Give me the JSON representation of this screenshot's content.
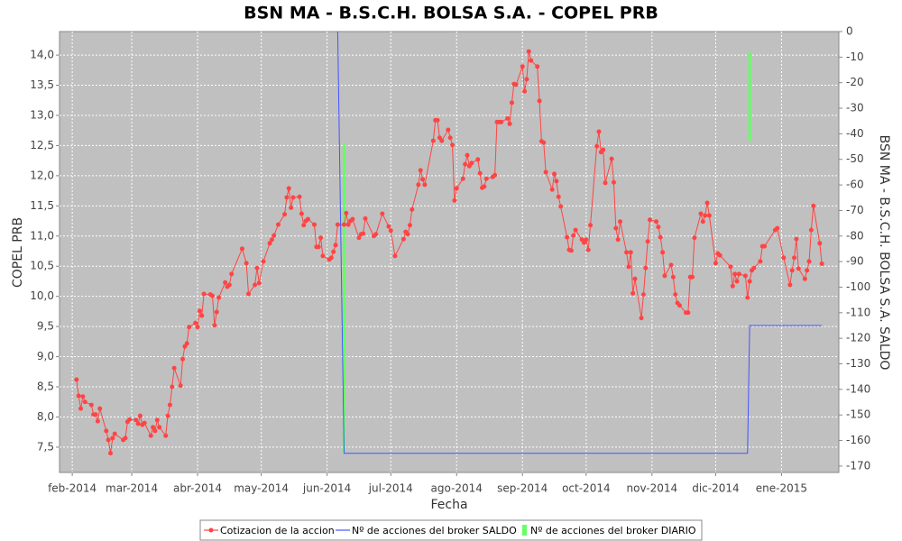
{
  "chart_data": {
    "type": "line",
    "title": "BSN MA - B.S.C.H. BOLSA S.A. - COPEL PRB",
    "x_label": "Fecha",
    "y_label": "COPEL PRB",
    "y2_label": "BSN MA - B.S.C.H. BOLSA S.A. SALDO",
    "xlim": [
      "2014-01-26",
      "2015-01-28"
    ],
    "xticks": [
      {
        "value": "2014-02-01",
        "label": "feb-2014"
      },
      {
        "value": "2014-03-01",
        "label": "mar-2014"
      },
      {
        "value": "2014-04-01",
        "label": "abr-2014"
      },
      {
        "value": "2014-05-01",
        "label": "may-2014"
      },
      {
        "value": "2014-06-01",
        "label": "jun-2014"
      },
      {
        "value": "2014-07-01",
        "label": "jul-2014"
      },
      {
        "value": "2014-08-01",
        "label": "ago-2014"
      },
      {
        "value": "2014-09-01",
        "label": "sep-2014"
      },
      {
        "value": "2014-10-01",
        "label": "oct-2014"
      },
      {
        "value": "2014-11-01",
        "label": "nov-2014"
      },
      {
        "value": "2014-12-01",
        "label": "dic-2014"
      },
      {
        "value": "2015-01-01",
        "label": "ene-2015"
      }
    ],
    "ylim": [
      7.08,
      14.39
    ],
    "yticks": [
      {
        "value": 7.5,
        "label": "7,5"
      },
      {
        "value": 8.0,
        "label": "8,0"
      },
      {
        "value": 8.5,
        "label": "8,5"
      },
      {
        "value": 9.0,
        "label": "9,0"
      },
      {
        "value": 9.5,
        "label": "9,5"
      },
      {
        "value": 10.0,
        "label": "10,0"
      },
      {
        "value": 10.5,
        "label": "10,5"
      },
      {
        "value": 11.0,
        "label": "11,0"
      },
      {
        "value": 11.5,
        "label": "11,5"
      },
      {
        "value": 12.0,
        "label": "12,0"
      },
      {
        "value": 12.5,
        "label": "12,5"
      },
      {
        "value": 13.0,
        "label": "13,0"
      },
      {
        "value": 13.5,
        "label": "13,5"
      },
      {
        "value": 14.0,
        "label": "14,0"
      }
    ],
    "y2lim": [
      -172.5,
      0
    ],
    "y2ticks": [
      0,
      -10,
      -20,
      -30,
      -40,
      -50,
      -60,
      -70,
      -80,
      -90,
      -100,
      -110,
      -120,
      -130,
      -140,
      -150,
      -160,
      -170
    ],
    "grid": true,
    "legend": "bottom",
    "series": [
      {
        "name": "Cotizacion de la accion",
        "color": "#ff4444",
        "type": "line",
        "markers": true,
        "x": [
          "2014-02-03",
          "2014-02-04",
          "2014-02-05",
          "2014-02-06",
          "2014-02-07",
          "2014-02-10",
          "2014-02-11",
          "2014-02-12",
          "2014-02-13",
          "2014-02-14",
          "2014-02-17",
          "2014-02-18",
          "2014-02-19",
          "2014-02-20",
          "2014-02-21",
          "2014-02-25",
          "2014-02-26",
          "2014-02-27",
          "2014-02-28",
          "2014-03-03",
          "2014-03-04",
          "2014-03-05",
          "2014-03-06",
          "2014-03-07",
          "2014-03-10",
          "2014-03-11",
          "2014-03-12",
          "2014-03-13",
          "2014-03-14",
          "2014-03-17",
          "2014-03-18",
          "2014-03-19",
          "2014-03-20",
          "2014-03-21",
          "2014-03-24",
          "2014-03-25",
          "2014-03-26",
          "2014-03-27",
          "2014-03-28",
          "2014-03-31",
          "2014-04-01",
          "2014-04-02",
          "2014-04-03",
          "2014-04-04",
          "2014-04-07",
          "2014-04-08",
          "2014-04-09",
          "2014-04-10",
          "2014-04-11",
          "2014-04-14",
          "2014-04-15",
          "2014-04-16",
          "2014-04-17",
          "2014-04-22",
          "2014-04-24",
          "2014-04-25",
          "2014-04-28",
          "2014-04-29",
          "2014-04-30",
          "2014-05-02",
          "2014-05-05",
          "2014-05-06",
          "2014-05-07",
          "2014-05-09",
          "2014-05-12",
          "2014-05-13",
          "2014-05-14",
          "2014-05-15",
          "2014-05-16",
          "2014-05-19",
          "2014-05-20",
          "2014-05-21",
          "2014-05-22",
          "2014-05-23",
          "2014-05-26",
          "2014-05-27",
          "2014-05-28",
          "2014-05-29",
          "2014-05-30",
          "2014-06-02",
          "2014-06-03",
          "2014-06-04",
          "2014-06-05",
          "2014-06-06",
          "2014-06-09",
          "2014-06-10",
          "2014-06-11",
          "2014-06-12",
          "2014-06-13",
          "2014-06-16",
          "2014-06-17",
          "2014-06-18",
          "2014-06-19",
          "2014-06-23",
          "2014-06-24",
          "2014-06-27",
          "2014-06-30",
          "2014-07-01",
          "2014-07-03",
          "2014-07-07",
          "2014-07-08",
          "2014-07-09",
          "2014-07-10",
          "2014-07-11",
          "2014-07-14",
          "2014-07-15",
          "2014-07-16",
          "2014-07-17",
          "2014-07-21",
          "2014-07-22",
          "2014-07-23",
          "2014-07-24",
          "2014-07-25",
          "2014-07-28",
          "2014-07-29",
          "2014-07-30",
          "2014-07-31",
          "2014-08-01",
          "2014-08-04",
          "2014-08-05",
          "2014-08-06",
          "2014-08-07",
          "2014-08-08",
          "2014-08-11",
          "2014-08-12",
          "2014-08-13",
          "2014-08-14",
          "2014-08-15",
          "2014-08-18",
          "2014-08-19",
          "2014-08-20",
          "2014-08-21",
          "2014-08-22",
          "2014-08-25",
          "2014-08-26",
          "2014-08-27",
          "2014-08-28",
          "2014-08-29",
          "2014-09-01",
          "2014-09-02",
          "2014-09-03",
          "2014-09-04",
          "2014-09-05",
          "2014-09-08",
          "2014-09-09",
          "2014-09-10",
          "2014-09-11",
          "2014-09-12",
          "2014-09-15",
          "2014-09-16",
          "2014-09-17",
          "2014-09-18",
          "2014-09-19",
          "2014-09-22",
          "2014-09-23",
          "2014-09-24",
          "2014-09-25",
          "2014-09-26",
          "2014-09-29",
          "2014-09-30",
          "2014-10-01",
          "2014-10-02",
          "2014-10-03",
          "2014-10-06",
          "2014-10-07",
          "2014-10-08",
          "2014-10-09",
          "2014-10-10",
          "2014-10-13",
          "2014-10-14",
          "2014-10-15",
          "2014-10-16",
          "2014-10-17",
          "2014-10-20",
          "2014-10-21",
          "2014-10-22",
          "2014-10-23",
          "2014-10-24",
          "2014-10-27",
          "2014-10-28",
          "2014-10-29",
          "2014-10-30",
          "2014-10-31",
          "2014-11-03",
          "2014-11-04",
          "2014-11-05",
          "2014-11-06",
          "2014-11-07",
          "2014-11-10",
          "2014-11-11",
          "2014-11-12",
          "2014-11-13",
          "2014-11-14",
          "2014-11-17",
          "2014-11-18",
          "2014-11-19",
          "2014-11-20",
          "2014-11-21",
          "2014-11-24",
          "2014-11-25",
          "2014-11-26",
          "2014-11-27",
          "2014-11-28",
          "2014-12-01",
          "2014-12-02",
          "2014-12-03",
          "2014-12-08",
          "2014-12-09",
          "2014-12-10",
          "2014-12-11",
          "2014-12-12",
          "2014-12-15",
          "2014-12-16",
          "2014-12-17",
          "2014-12-18",
          "2014-12-19",
          "2014-12-22",
          "2014-12-23",
          "2014-12-24",
          "2014-12-29",
          "2014-12-30",
          "2015-01-02",
          "2015-01-05",
          "2015-01-06",
          "2015-01-07",
          "2015-01-08",
          "2015-01-09",
          "2015-01-12",
          "2015-01-13",
          "2015-01-14",
          "2015-01-15",
          "2015-01-16",
          "2015-01-19",
          "2015-01-20"
        ],
        "values": [
          8.62,
          8.35,
          8.14,
          8.34,
          8.25,
          8.2,
          8.04,
          8.04,
          7.93,
          8.14,
          7.77,
          7.62,
          7.4,
          7.65,
          7.72,
          7.62,
          7.65,
          7.92,
          7.96,
          7.95,
          7.89,
          8.02,
          7.87,
          7.9,
          7.69,
          7.83,
          7.77,
          7.95,
          7.83,
          7.69,
          8.02,
          8.2,
          8.5,
          8.81,
          8.52,
          8.96,
          9.17,
          9.22,
          9.49,
          9.56,
          9.49,
          9.76,
          9.68,
          10.04,
          10.03,
          10.01,
          9.52,
          9.74,
          9.98,
          10.23,
          10.16,
          10.19,
          10.37,
          10.79,
          10.55,
          10.04,
          10.19,
          10.47,
          10.22,
          10.58,
          10.88,
          10.94,
          11.01,
          11.19,
          11.36,
          11.64,
          11.79,
          11.47,
          11.64,
          11.65,
          11.37,
          11.18,
          11.25,
          11.28,
          11.19,
          10.82,
          10.82,
          10.97,
          10.67,
          10.61,
          10.64,
          10.74,
          10.85,
          11.19,
          11.19,
          11.38,
          11.19,
          11.25,
          11.28,
          10.97,
          11.03,
          11.04,
          11.29,
          11.0,
          11.03,
          11.37,
          11.16,
          11.09,
          10.67,
          10.95,
          11.07,
          11.03,
          11.18,
          11.44,
          11.85,
          12.09,
          11.94,
          11.85,
          12.58,
          12.92,
          12.92,
          12.63,
          12.58,
          12.76,
          12.63,
          12.51,
          11.59,
          11.79,
          11.95,
          12.19,
          12.34,
          12.16,
          12.21,
          12.27,
          12.04,
          11.8,
          11.82,
          11.95,
          11.98,
          12.01,
          12.89,
          12.89,
          12.89,
          12.95,
          12.86,
          13.21,
          13.52,
          13.51,
          13.81,
          13.4,
          13.6,
          14.06,
          13.91,
          13.81,
          13.24,
          12.57,
          12.55,
          12.06,
          11.77,
          12.03,
          11.91,
          11.65,
          11.49,
          10.98,
          10.77,
          10.76,
          11.01,
          11.1,
          10.94,
          10.89,
          10.94,
          10.77,
          11.18,
          12.49,
          12.73,
          12.39,
          12.43,
          11.88,
          12.28,
          11.89,
          11.13,
          10.94,
          11.24,
          10.73,
          10.49,
          10.73,
          10.05,
          10.29,
          9.64,
          10.03,
          10.47,
          10.91,
          11.27,
          11.24,
          11.15,
          10.98,
          10.73,
          10.34,
          10.52,
          10.32,
          10.03,
          9.89,
          9.85,
          9.73,
          9.73,
          10.32,
          10.32,
          10.97,
          11.37,
          11.24,
          11.34,
          11.55,
          11.34,
          10.55,
          10.71,
          10.68,
          10.49,
          10.17,
          10.37,
          10.25,
          10.37,
          10.34,
          9.98,
          10.25,
          10.43,
          10.47,
          10.58,
          10.83,
          10.83,
          11.1,
          11.13,
          10.64,
          10.19,
          10.43,
          10.64,
          10.95,
          10.46,
          10.29,
          10.43,
          10.58,
          11.1,
          11.5,
          10.88,
          10.54
        ]
      },
      {
        "name": "Nº de acciones del broker SALDO",
        "color": "#4455ff",
        "type": "line",
        "axis": "y2",
        "x": [
          "2014-06-06",
          "2014-06-09",
          "2014-12-16",
          "2014-12-17",
          "2015-01-20"
        ],
        "values": [
          0,
          -165,
          -165,
          -115,
          -115
        ]
      },
      {
        "name": "Nº de acciones del broker DIARIO",
        "color": "#66ff66",
        "type": "bar",
        "axis": "y2",
        "x": [
          "2014-06-09",
          "2014-12-17"
        ],
        "values": [
          -44,
          -8
        ],
        "bottoms": [
          -165,
          -43
        ]
      }
    ]
  }
}
